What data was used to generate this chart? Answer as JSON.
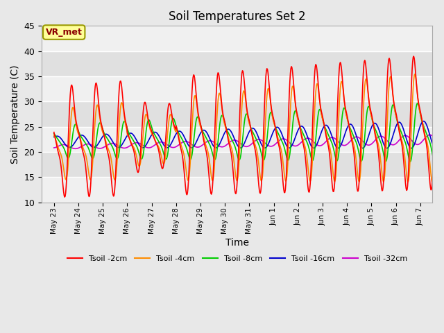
{
  "title": "Soil Temperatures Set 2",
  "xlabel": "Time",
  "ylabel": "Soil Temperature (C)",
  "ylim": [
    10,
    45
  ],
  "background_color": "#e8e8e8",
  "plot_bg_color": "#e8e8e8",
  "annotation_text": "VR_met",
  "annotation_box_color": "#ffff99",
  "annotation_text_color": "#8b0000",
  "series_colors": [
    "#ff0000",
    "#ff8c00",
    "#00cc00",
    "#0000cc",
    "#cc00cc"
  ],
  "series_labels": [
    "Tsoil -2cm",
    "Tsoil -4cm",
    "Tsoil -8cm",
    "Tsoil -16cm",
    "Tsoil -32cm"
  ],
  "x_tick_labels": [
    "May 23",
    "May 24",
    "May 25",
    "May 26",
    "May 27",
    "May 28",
    "May 29",
    "May 30",
    "May 31",
    "Jun 1",
    "Jun 2",
    "Jun 3",
    "Jun 4",
    "Jun 5",
    "Jun 6",
    "Jun 7"
  ],
  "x_tick_positions": [
    0,
    1,
    2,
    3,
    4,
    5,
    6,
    7,
    8,
    9,
    10,
    11,
    12,
    13,
    14,
    15
  ],
  "yticks": [
    10,
    15,
    20,
    25,
    30,
    35,
    40,
    45
  ],
  "grid_color": "#ffffff",
  "figsize": [
    6.4,
    4.8
  ],
  "dpi": 100
}
